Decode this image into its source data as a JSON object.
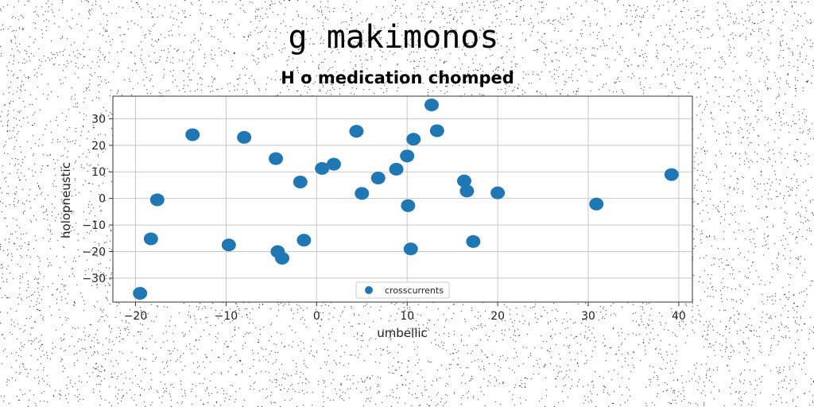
{
  "suptitle": "g makimonos",
  "chart_data": {
    "type": "scatter",
    "title": "H o medication chomped",
    "xlabel": "umbellic",
    "ylabel": "holopneustic",
    "xlim": [
      -22.5,
      41.5
    ],
    "ylim": [
      -39,
      38.5
    ],
    "xticks": [
      -20,
      -10,
      0,
      10,
      20,
      30,
      40
    ],
    "yticks": [
      -30,
      -20,
      -10,
      0,
      10,
      20,
      30
    ],
    "xtick_labels": [
      "−20",
      "−10",
      "0",
      "10",
      "20",
      "30",
      "40"
    ],
    "ytick_labels": [
      "−30",
      "−20",
      "−10",
      "0",
      "10",
      "20",
      "30"
    ],
    "grid": true,
    "legend_position": "lower center",
    "series": [
      {
        "name": "crosscurrents",
        "color": "#1f77b4",
        "points": [
          {
            "x": -19.5,
            "y": -35.7
          },
          {
            "x": -18.3,
            "y": -15.2
          },
          {
            "x": -17.6,
            "y": -0.5
          },
          {
            "x": -13.7,
            "y": 24.0
          },
          {
            "x": -9.7,
            "y": -17.5
          },
          {
            "x": -8.0,
            "y": 23.0
          },
          {
            "x": -4.5,
            "y": 15.0
          },
          {
            "x": -4.3,
            "y": -20.0
          },
          {
            "x": -3.8,
            "y": -22.5
          },
          {
            "x": -1.8,
            "y": 6.2
          },
          {
            "x": -1.4,
            "y": -15.7
          },
          {
            "x": 0.6,
            "y": 11.3
          },
          {
            "x": 1.9,
            "y": 12.9
          },
          {
            "x": 4.4,
            "y": 25.3
          },
          {
            "x": 5.0,
            "y": 1.9
          },
          {
            "x": 6.8,
            "y": 7.7
          },
          {
            "x": 8.8,
            "y": 11.0
          },
          {
            "x": 10.0,
            "y": 16.0
          },
          {
            "x": 10.1,
            "y": -2.7
          },
          {
            "x": 10.4,
            "y": -19.0
          },
          {
            "x": 10.7,
            "y": 22.3
          },
          {
            "x": 12.7,
            "y": 35.2
          },
          {
            "x": 13.3,
            "y": 25.5
          },
          {
            "x": 16.3,
            "y": 6.6
          },
          {
            "x": 16.6,
            "y": 2.8
          },
          {
            "x": 17.3,
            "y": -16.2
          },
          {
            "x": 20.0,
            "y": 2.1
          },
          {
            "x": 30.9,
            "y": -2.1
          },
          {
            "x": 39.2,
            "y": 9.0
          }
        ]
      }
    ]
  }
}
